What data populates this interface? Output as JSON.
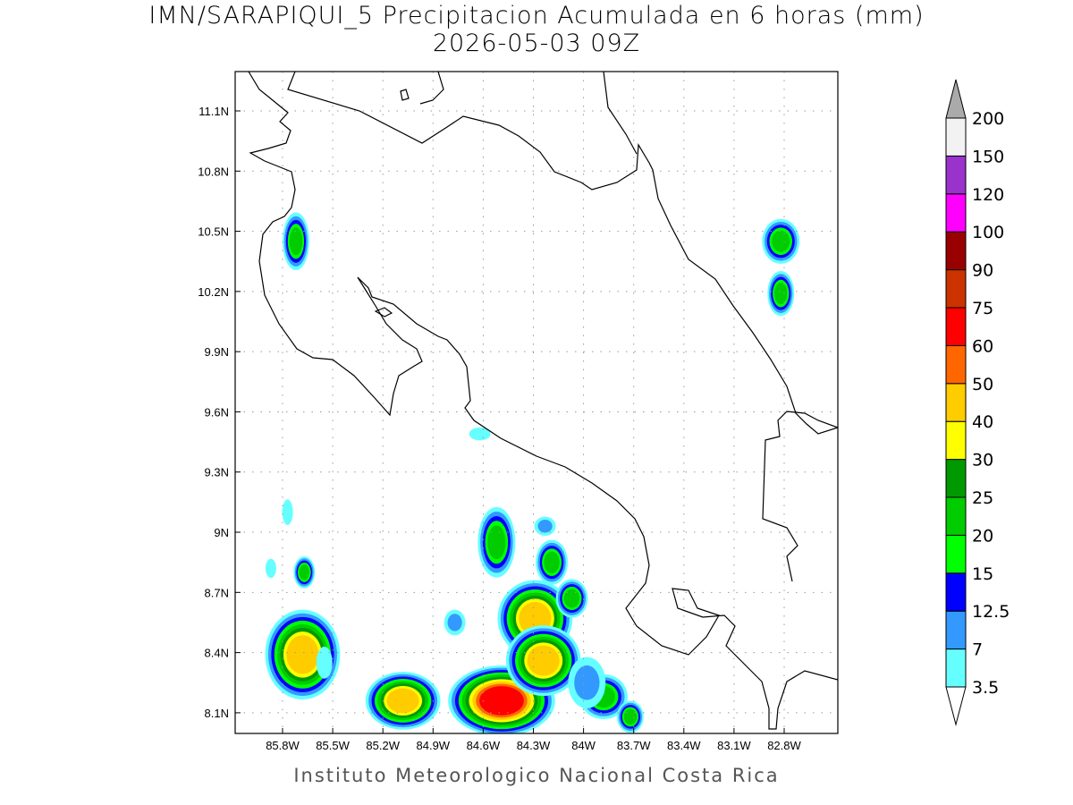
{
  "title": {
    "line1": "IMN/SARAPIQUI_5 Precipitacion Acumulada en 6 horas (mm)",
    "line2": "2026-05-03 09Z"
  },
  "credit": "Instituto Meteorologico Nacional Costa Rica",
  "axes": {
    "lon_ticks": [
      "85.8W",
      "85.5W",
      "85.2W",
      "84.9W",
      "84.6W",
      "84.3W",
      "84W",
      "83.7W",
      "83.4W",
      "83.1W",
      "82.8W"
    ],
    "lon_values": [
      -85.8,
      -85.5,
      -85.2,
      -84.9,
      -84.6,
      -84.3,
      -84.0,
      -83.7,
      -83.4,
      -83.1,
      -82.8
    ],
    "lat_ticks": [
      "11.1N",
      "10.8N",
      "10.5N",
      "10.2N",
      "9.9N",
      "9.6N",
      "9.3N",
      "9N",
      "8.7N",
      "8.4N",
      "8.1N"
    ],
    "lat_values": [
      11.1,
      10.8,
      10.5,
      10.2,
      9.9,
      9.6,
      9.3,
      9.0,
      8.7,
      8.4,
      8.1
    ]
  },
  "colorbar": {
    "levels": [
      "3.5",
      "7",
      "12.5",
      "15",
      "20",
      "25",
      "30",
      "40",
      "50",
      "60",
      "75",
      "90",
      "100",
      "120",
      "150",
      "200"
    ],
    "colors": [
      "#66ffff",
      "#3399ff",
      "#0000ff",
      "#00ff00",
      "#00cc00",
      "#009900",
      "#ffff00",
      "#ffcc00",
      "#ff6600",
      "#ff0000",
      "#cc3300",
      "#990000",
      "#ff00ff",
      "#9933cc",
      "#f2f2f2"
    ],
    "under_color": "#ffffff",
    "over_color": "#aaaaaa"
  },
  "precip_cells": [
    {
      "lon": -85.72,
      "lat": 10.45,
      "max": 20,
      "rx": 0.05,
      "ry": 0.09
    },
    {
      "lon": -82.82,
      "lat": 10.45,
      "max": 20,
      "rx": 0.07,
      "ry": 0.07
    },
    {
      "lon": -82.82,
      "lat": 10.19,
      "max": 20,
      "rx": 0.05,
      "ry": 0.07
    },
    {
      "lon": -85.67,
      "lat": 8.8,
      "max": 20,
      "rx": 0.04,
      "ry": 0.05
    },
    {
      "lon": -85.68,
      "lat": 8.39,
      "max": 40,
      "rx": 0.14,
      "ry": 0.14
    },
    {
      "lon": -85.08,
      "lat": 8.16,
      "max": 40,
      "rx": 0.14,
      "ry": 0.09
    },
    {
      "lon": -84.49,
      "lat": 8.16,
      "max": 60,
      "rx": 0.2,
      "ry": 0.11
    },
    {
      "lon": -84.29,
      "lat": 8.57,
      "max": 40,
      "rx": 0.14,
      "ry": 0.12
    },
    {
      "lon": -84.24,
      "lat": 8.36,
      "max": 40,
      "rx": 0.14,
      "ry": 0.11
    },
    {
      "lon": -84.52,
      "lat": 8.95,
      "max": 20,
      "rx": 0.07,
      "ry": 0.11
    },
    {
      "lon": -84.19,
      "lat": 8.85,
      "max": 20,
      "rx": 0.06,
      "ry": 0.07
    },
    {
      "lon": -84.07,
      "lat": 8.67,
      "max": 20,
      "rx": 0.06,
      "ry": 0.06
    },
    {
      "lon": -83.88,
      "lat": 8.18,
      "max": 20,
      "rx": 0.09,
      "ry": 0.07
    },
    {
      "lon": -83.72,
      "lat": 8.08,
      "max": 20,
      "rx": 0.05,
      "ry": 0.05
    },
    {
      "lon": -83.98,
      "lat": 8.25,
      "max": 7,
      "rx": 0.07,
      "ry": 0.08
    },
    {
      "lon": -84.23,
      "lat": 9.03,
      "max": 7,
      "rx": 0.04,
      "ry": 0.03
    },
    {
      "lon": -84.77,
      "lat": 8.55,
      "max": 7,
      "rx": 0.04,
      "ry": 0.04
    },
    {
      "lon": -84.62,
      "lat": 9.49,
      "max": 3.5,
      "rx": 0.04,
      "ry": 0.02
    },
    {
      "lon": -85.77,
      "lat": 9.1,
      "max": 3.5,
      "rx": 0.02,
      "ry": 0.04
    },
    {
      "lon": -85.55,
      "lat": 8.35,
      "max": 3.5,
      "rx": 0.03,
      "ry": 0.05
    },
    {
      "lon": -85.87,
      "lat": 8.82,
      "max": 3.5,
      "rx": 0.02,
      "ry": 0.03
    }
  ]
}
